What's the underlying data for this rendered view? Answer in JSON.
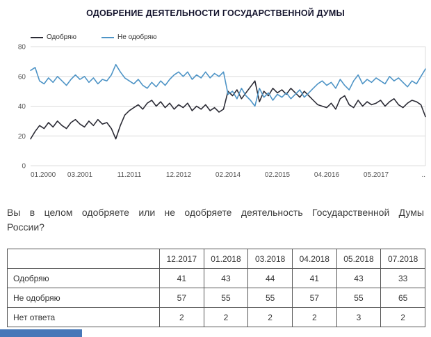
{
  "title": "ОДОБРЕНИЕ ДЕЯТЕЛЬНОСТИ ГОСУДАРСТВЕННОЙ ДУМЫ",
  "colors": {
    "approve_line": "#2b2b35",
    "disapprove_line": "#4e94c6",
    "grid": "#dddddd",
    "tick_text": "#555555",
    "banner_blue": "#4677b8"
  },
  "chart_data": {
    "type": "line",
    "title": "ОДОБРЕНИЕ ДЕЯТЕЛЬНОСТИ ГОСУДАРСТВЕННОЙ ДУМЫ",
    "x_tick_labels": [
      "01.2000",
      "03.2001",
      "11.2011",
      "12.2012",
      "02.2014",
      "02.2015",
      "04.2016",
      "05.2017",
      ".."
    ],
    "y_ticks": [
      0,
      20,
      40,
      60,
      80
    ],
    "ylim": [
      0,
      80
    ],
    "grid": true,
    "legend_position": "top-left",
    "series": [
      {
        "name": "Одобряю",
        "color": "#2b2b35",
        "values": [
          18,
          23,
          27,
          25,
          29,
          26,
          30,
          27,
          25,
          29,
          31,
          28,
          26,
          30,
          27,
          31,
          28,
          29,
          25,
          18,
          27,
          34,
          37,
          39,
          41,
          38,
          42,
          44,
          40,
          43,
          39,
          42,
          38,
          41,
          39,
          42,
          37,
          40,
          38,
          41,
          37,
          39,
          36,
          38,
          50,
          47,
          51,
          45,
          49,
          53,
          57,
          43,
          50,
          47,
          52,
          49,
          51,
          48,
          52,
          49,
          46,
          50,
          47,
          44,
          41,
          40,
          39,
          42,
          38,
          45,
          47,
          41,
          39,
          44,
          40,
          43,
          41,
          42,
          44,
          40,
          43,
          45,
          41,
          39,
          42,
          44,
          43,
          41,
          33
        ]
      },
      {
        "name": "Не одобряю",
        "color": "#4e94c6",
        "values": [
          64,
          66,
          57,
          55,
          59,
          56,
          60,
          57,
          54,
          58,
          61,
          58,
          60,
          56,
          59,
          55,
          58,
          57,
          61,
          68,
          63,
          59,
          57,
          55,
          58,
          54,
          52,
          56,
          53,
          57,
          54,
          58,
          61,
          63,
          60,
          63,
          58,
          61,
          59,
          63,
          59,
          62,
          60,
          63,
          48,
          50,
          45,
          52,
          47,
          44,
          40,
          52,
          46,
          49,
          44,
          48,
          46,
          49,
          45,
          48,
          51,
          46,
          49,
          52,
          55,
          57,
          54,
          56,
          52,
          58,
          54,
          51,
          57,
          61,
          55,
          58,
          56,
          59,
          57,
          55,
          60,
          57,
          59,
          56,
          53,
          57,
          55,
          60,
          65
        ]
      }
    ]
  },
  "question": {
    "line1": "Вы в целом одобряете или не одобряете деятельность Государственной Думы",
    "line2": "России?"
  },
  "table": {
    "header": [
      "",
      "12.2017",
      "01.2018",
      "03.2018",
      "04.2018",
      "05.2018",
      "07.2018"
    ],
    "rows": [
      {
        "label": "Одобряю",
        "values": [
          "41",
          "43",
          "44",
          "41",
          "43",
          "33"
        ]
      },
      {
        "label": "Не одобряю",
        "values": [
          "57",
          "55",
          "55",
          "57",
          "55",
          "65"
        ]
      },
      {
        "label": "Нет ответа",
        "values": [
          "2",
          "2",
          "2",
          "2",
          "3",
          "2"
        ]
      }
    ]
  }
}
